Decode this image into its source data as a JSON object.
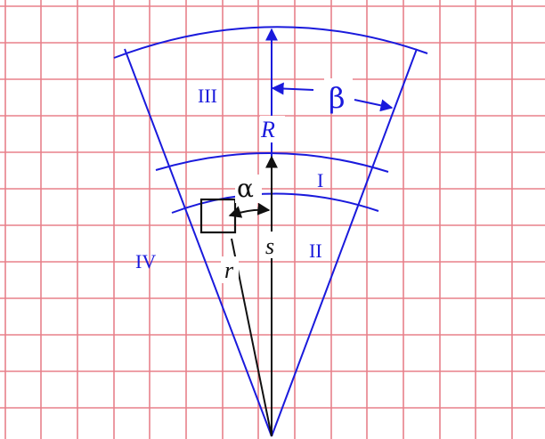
{
  "colors": {
    "grid": "#e8808a",
    "blue": "#1a1adc",
    "black": "#111111",
    "background": "#ffffff"
  },
  "labels": {
    "region_1": "I",
    "region_2": "II",
    "region_3": "III",
    "region_4": "IV",
    "angle_alpha": "α",
    "angle_beta": "β",
    "radius_outer": "R",
    "radius_inner": "r",
    "arc_length": "s"
  }
}
